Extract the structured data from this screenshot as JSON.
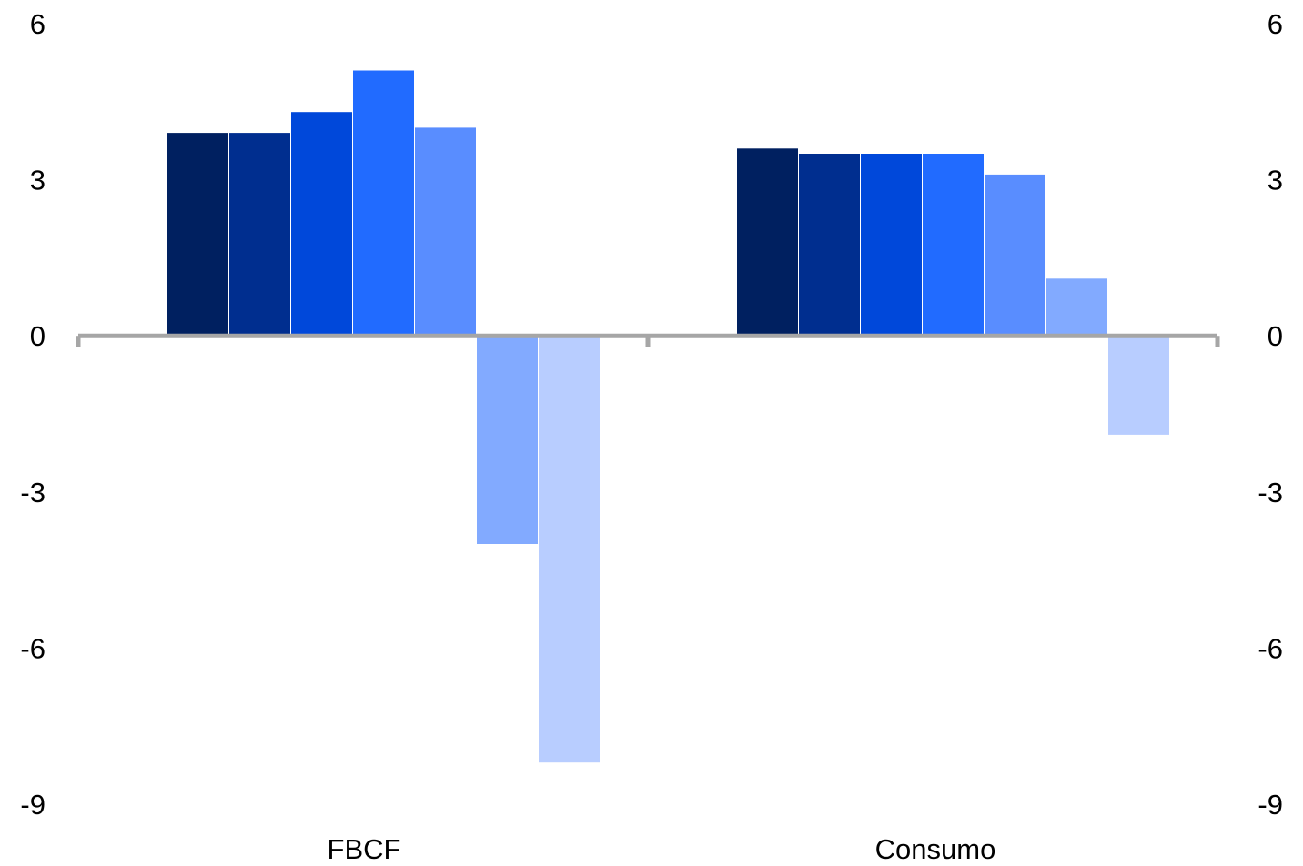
{
  "chart_data": {
    "type": "bar",
    "title": "",
    "xlabel": "",
    "ylabel": "",
    "categories": [
      "FBCF",
      "Consumo"
    ],
    "series": [
      {
        "values": [
          3.9,
          3.6
        ],
        "color": "#002060"
      },
      {
        "values": [
          3.9,
          3.5
        ],
        "color": "#002E8F"
      },
      {
        "values": [
          4.3,
          3.5
        ],
        "color": "#0048DA"
      },
      {
        "values": [
          5.1,
          3.5
        ],
        "color": "#216BFF"
      },
      {
        "values": [
          4.0,
          3.1
        ],
        "color": "#598DFF"
      },
      {
        "values": [
          -4.0,
          1.1
        ],
        "color": "#82AAFF"
      },
      {
        "values": [
          -8.2,
          -1.9
        ],
        "color": "#B8CDFF"
      }
    ],
    "ylim": [
      -9,
      6
    ],
    "yticks": [
      "6",
      "3",
      "0",
      "-3",
      "-6",
      "-9"
    ],
    "ytick_values": [
      6,
      3,
      0,
      -3,
      -6,
      -9
    ],
    "secondary_yticks": [
      "6",
      "3",
      "0",
      "-3",
      "-6",
      "-9"
    ],
    "grid": false,
    "legend": "none",
    "axis_color": "#A6A6A6"
  }
}
